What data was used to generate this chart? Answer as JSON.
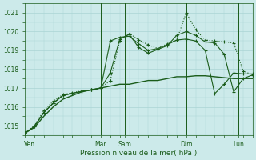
{
  "xlabel": "Pression niveau de la mer( hPa )",
  "background_color": "#cceaea",
  "grid_major_color": "#aad4d4",
  "grid_minor_color": "#aad4d4",
  "line_color": "#1a5c1a",
  "ylim": [
    1014.5,
    1021.5
  ],
  "xlim": [
    0,
    24
  ],
  "yticks": [
    1015,
    1016,
    1017,
    1018,
    1019,
    1020,
    1021
  ],
  "day_labels": [
    "Ven",
    "Mar",
    "Sam",
    "Dim",
    "Lun"
  ],
  "day_positions": [
    0.5,
    8,
    10.5,
    17,
    22.5
  ],
  "vlines": [
    0.5,
    8,
    10.5,
    17,
    22.5
  ],
  "num_points": 25,
  "series": [
    {
      "x": [
        0,
        1,
        2,
        3,
        4,
        5,
        6,
        7,
        8,
        9,
        10,
        11,
        12,
        13,
        14,
        15,
        16,
        17,
        18,
        19,
        20,
        21,
        22,
        23,
        24
      ],
      "y": [
        1014.6,
        1014.9,
        1015.5,
        1016.0,
        1016.4,
        1016.6,
        1016.8,
        1016.9,
        1017.0,
        1017.1,
        1017.2,
        1017.2,
        1017.3,
        1017.4,
        1017.4,
        1017.5,
        1017.6,
        1017.6,
        1017.65,
        1017.65,
        1017.6,
        1017.55,
        1017.5,
        1017.5,
        1017.5
      ],
      "linestyle": "-",
      "markers": false,
      "linewidth": 1.0
    },
    {
      "x": [
        0,
        1,
        2,
        3,
        4,
        5,
        6,
        7,
        8,
        9,
        10,
        11,
        12,
        13,
        14,
        15,
        16,
        17,
        18,
        19,
        20,
        21,
        22,
        23,
        24
      ],
      "y": [
        1014.6,
        1015.0,
        1015.8,
        1016.3,
        1016.65,
        1016.75,
        1016.85,
        1016.9,
        1017.0,
        1017.4,
        1019.5,
        1019.9,
        1019.55,
        1019.3,
        1019.1,
        1019.35,
        1019.55,
        1021.0,
        1020.1,
        1019.55,
        1019.5,
        1019.45,
        1019.4,
        1017.9,
        1017.7
      ],
      "linestyle": ":",
      "markers": true,
      "linewidth": 0.8
    },
    {
      "x": [
        0,
        1,
        2,
        3,
        4,
        5,
        6,
        7,
        8,
        9,
        10,
        11,
        12,
        13,
        14,
        15,
        16,
        17,
        18,
        19,
        20,
        21,
        22,
        23,
        24
      ],
      "y": [
        1014.6,
        1014.95,
        1015.7,
        1016.2,
        1016.6,
        1016.72,
        1016.82,
        1016.9,
        1017.0,
        1019.5,
        1019.7,
        1019.75,
        1019.35,
        1019.0,
        1019.1,
        1019.3,
        1019.55,
        1019.6,
        1019.5,
        1019.0,
        1016.7,
        1017.2,
        1017.8,
        1017.75,
        1017.75
      ],
      "linestyle": "-",
      "markers": true,
      "linewidth": 0.8
    },
    {
      "x": [
        0,
        1,
        2,
        3,
        4,
        5,
        6,
        7,
        8,
        9,
        10,
        11,
        12,
        13,
        14,
        15,
        16,
        17,
        18,
        19,
        20,
        21,
        22,
        23,
        24
      ],
      "y": [
        1014.6,
        1014.95,
        1015.7,
        1016.2,
        1016.6,
        1016.72,
        1016.82,
        1016.9,
        1017.0,
        1017.8,
        1019.6,
        1019.85,
        1019.15,
        1018.85,
        1019.05,
        1019.25,
        1019.8,
        1020.0,
        1019.8,
        1019.45,
        1019.4,
        1018.8,
        1016.8,
        1017.5,
        1017.7
      ],
      "linestyle": "-",
      "markers": true,
      "linewidth": 0.8
    }
  ]
}
